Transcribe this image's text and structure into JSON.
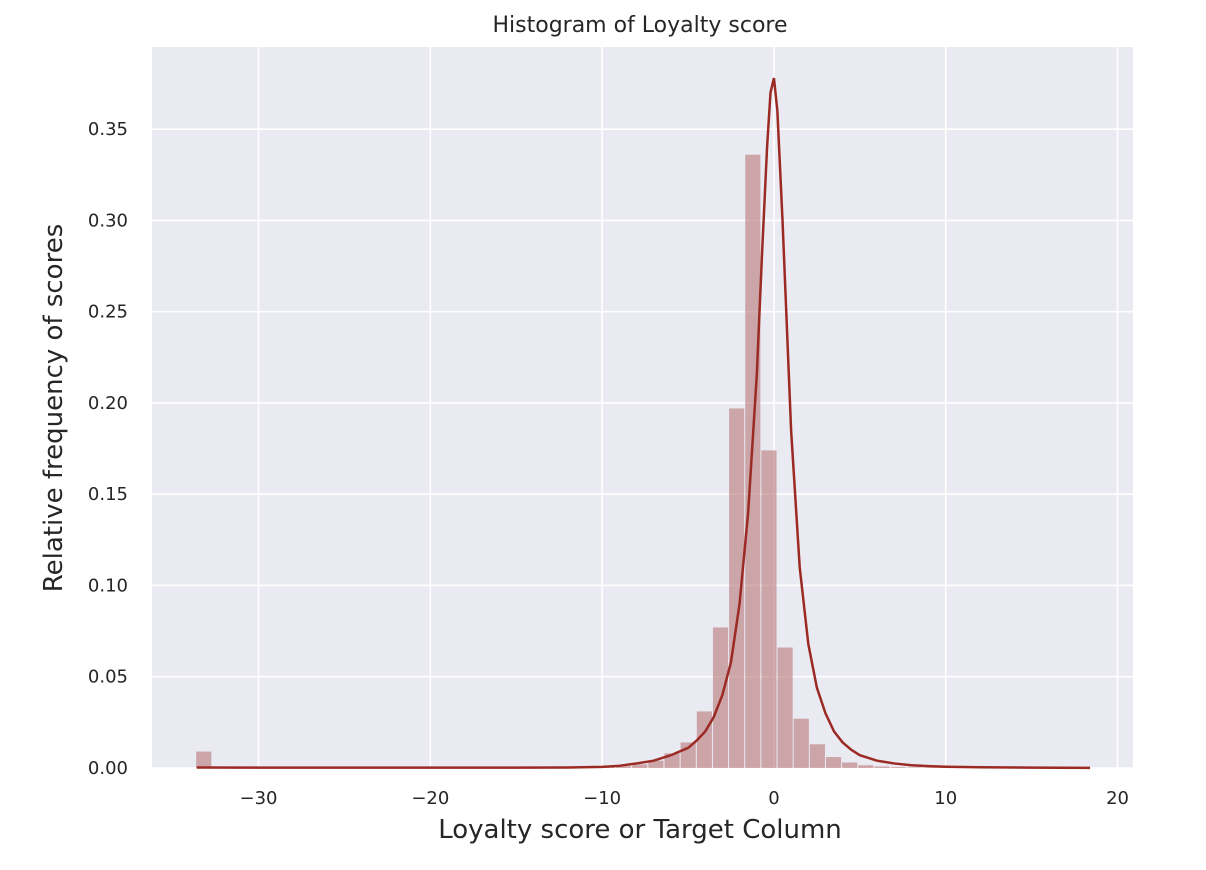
{
  "chart_data": {
    "type": "bar",
    "title": "Histogram of Loyalty score",
    "xlabel": "Loyalty score or Target Column",
    "ylabel": "Relative frequency of scores",
    "xlim": [
      -36.2,
      20.9
    ],
    "ylim": [
      0,
      0.395
    ],
    "xticks": [
      -30,
      -20,
      -10,
      0,
      10,
      20
    ],
    "xtick_labels": [
      "−30",
      "−20",
      "−10",
      "0",
      "10",
      "20"
    ],
    "yticks": [
      0.0,
      0.05,
      0.1,
      0.15,
      0.2,
      0.25,
      0.3,
      0.35
    ],
    "ytick_labels": [
      "0.00",
      "0.05",
      "0.10",
      "0.15",
      "0.20",
      "0.25",
      "0.30",
      "0.35"
    ],
    "grid": true,
    "bars": {
      "name": "histogram",
      "bin_edges": [
        -33.63,
        -32.69,
        -31.75,
        -30.81,
        -29.87,
        -28.93,
        -27.99,
        -27.05,
        -26.11,
        -25.17,
        -24.23,
        -23.29,
        -22.35,
        -21.41,
        -20.47,
        -19.53,
        -18.59,
        -17.65,
        -16.71,
        -15.77,
        -14.83,
        -13.89,
        -12.95,
        -12.01,
        -11.07,
        -10.13,
        -9.19,
        -8.25,
        -7.31,
        -6.37,
        -5.43,
        -4.49,
        -3.55,
        -2.61,
        -1.67,
        -0.73,
        0.21,
        1.15,
        2.09,
        3.03,
        3.97,
        4.91,
        5.85,
        6.79,
        7.73,
        8.67,
        9.61,
        10.55,
        11.49,
        12.43,
        13.37,
        14.31,
        15.25,
        16.19,
        17.13,
        18.07,
        18.38
      ],
      "values": [
        0.009,
        0.0002,
        0.0002,
        0.0002,
        0.0002,
        0.0002,
        0.0002,
        0.0002,
        0.0002,
        0.0002,
        0.0002,
        0.0002,
        0.0002,
        0.0002,
        0.0002,
        0.0002,
        0.0002,
        0.0002,
        0.0002,
        0.0002,
        0.0002,
        0.0003,
        0.0003,
        0.0004,
        0.0005,
        0.0007,
        0.001,
        0.002,
        0.004,
        0.008,
        0.014,
        0.031,
        0.077,
        0.197,
        0.336,
        0.174,
        0.066,
        0.027,
        0.013,
        0.006,
        0.003,
        0.0015,
        0.0008,
        0.0005,
        0.0003,
        0.0002,
        0.0002,
        0.0002,
        0.0001,
        0.0001,
        0.0001,
        0.0001,
        0.0001,
        0.0001,
        0.0001,
        0.0001
      ],
      "color": "#b87a7a"
    },
    "kde": {
      "name": "density",
      "x": [
        -33.6,
        -30,
        -25,
        -20,
        -15,
        -12,
        -10,
        -9,
        -8,
        -7,
        -6,
        -5,
        -4.5,
        -4,
        -3.5,
        -3,
        -2.5,
        -2,
        -1.5,
        -1,
        -0.7,
        -0.4,
        -0.2,
        0,
        0.2,
        0.5,
        1,
        1.5,
        2,
        2.5,
        3,
        3.5,
        4,
        4.5,
        5,
        6,
        7,
        8,
        9,
        10,
        12,
        15,
        18.4
      ],
      "y": [
        0.0003,
        0.0002,
        0.0002,
        0.0002,
        0.0002,
        0.0003,
        0.0006,
        0.0012,
        0.0025,
        0.004,
        0.007,
        0.011,
        0.015,
        0.02,
        0.028,
        0.04,
        0.058,
        0.09,
        0.14,
        0.215,
        0.28,
        0.34,
        0.37,
        0.378,
        0.36,
        0.3,
        0.185,
        0.11,
        0.068,
        0.044,
        0.03,
        0.02,
        0.014,
        0.01,
        0.007,
        0.004,
        0.0025,
        0.0015,
        0.001,
        0.0007,
        0.0004,
        0.0002,
        0.0001
      ],
      "color": "#9b2a24"
    },
    "colors": {
      "plot_background": "#eaeaf2",
      "grid": "#ffffff",
      "bar_fill": "#b87a7a",
      "kde_line": "#9b2a24"
    }
  }
}
